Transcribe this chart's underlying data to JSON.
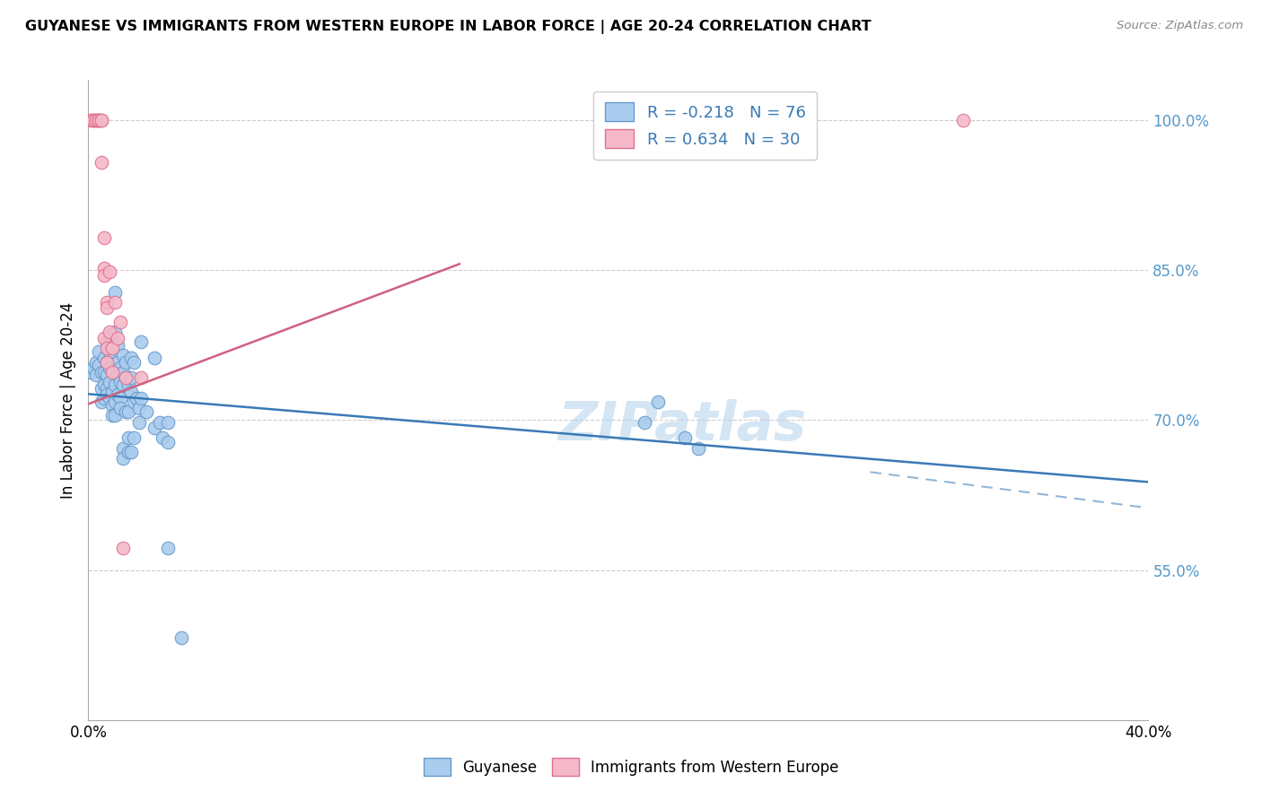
{
  "title": "GUYANESE VS IMMIGRANTS FROM WESTERN EUROPE IN LABOR FORCE | AGE 20-24 CORRELATION CHART",
  "source": "Source: ZipAtlas.com",
  "ylabel": "In Labor Force | Age 20-24",
  "xlim": [
    0.0,
    0.4
  ],
  "ylim": [
    0.4,
    1.04
  ],
  "yticks": [
    0.55,
    0.7,
    0.85,
    1.0
  ],
  "ytick_labels": [
    "55.0%",
    "70.0%",
    "85.0%",
    "100.0%"
  ],
  "xticks": [
    0.0,
    0.05,
    0.1,
    0.15,
    0.2,
    0.25,
    0.3,
    0.35,
    0.4
  ],
  "xtick_labels": [
    "0.0%",
    "",
    "",
    "",
    "",
    "",
    "",
    "",
    "40.0%"
  ],
  "legend_labels": [
    "Guyanese",
    "Immigrants from Western Europe"
  ],
  "blue_R": "-0.218",
  "blue_N": 76,
  "pink_R": "0.634",
  "pink_N": 30,
  "blue_fill_color": "#aaccee",
  "pink_fill_color": "#f5b8c8",
  "blue_edge_color": "#6699cc",
  "pink_edge_color": "#e07090",
  "blue_line_color": "#3a7ab5",
  "pink_line_color": "#d06080",
  "watermark": "ZIPatlas",
  "blue_trend": [
    0.0,
    0.4,
    0.726,
    0.638
  ],
  "pink_trend_solid": [
    0.0,
    0.14,
    0.716,
    0.856
  ],
  "blue_dash_segment": [
    0.295,
    0.4,
    0.648,
    0.612
  ],
  "blue_scatter": [
    [
      0.001,
      0.748
    ],
    [
      0.002,
      0.752
    ],
    [
      0.003,
      0.758
    ],
    [
      0.003,
      0.745
    ],
    [
      0.004,
      0.768
    ],
    [
      0.004,
      0.755
    ],
    [
      0.005,
      0.748
    ],
    [
      0.005,
      0.732
    ],
    [
      0.005,
      0.718
    ],
    [
      0.006,
      0.762
    ],
    [
      0.006,
      0.748
    ],
    [
      0.006,
      0.735
    ],
    [
      0.006,
      0.722
    ],
    [
      0.007,
      0.778
    ],
    [
      0.007,
      0.758
    ],
    [
      0.007,
      0.745
    ],
    [
      0.007,
      0.732
    ],
    [
      0.007,
      0.725
    ],
    [
      0.008,
      0.785
    ],
    [
      0.008,
      0.768
    ],
    [
      0.008,
      0.752
    ],
    [
      0.008,
      0.738
    ],
    [
      0.008,
      0.722
    ],
    [
      0.009,
      0.728
    ],
    [
      0.009,
      0.715
    ],
    [
      0.009,
      0.705
    ],
    [
      0.01,
      0.828
    ],
    [
      0.01,
      0.788
    ],
    [
      0.01,
      0.735
    ],
    [
      0.01,
      0.718
    ],
    [
      0.01,
      0.705
    ],
    [
      0.011,
      0.775
    ],
    [
      0.011,
      0.758
    ],
    [
      0.011,
      0.745
    ],
    [
      0.011,
      0.725
    ],
    [
      0.012,
      0.752
    ],
    [
      0.012,
      0.738
    ],
    [
      0.012,
      0.722
    ],
    [
      0.012,
      0.712
    ],
    [
      0.013,
      0.765
    ],
    [
      0.013,
      0.748
    ],
    [
      0.013,
      0.735
    ],
    [
      0.013,
      0.672
    ],
    [
      0.013,
      0.662
    ],
    [
      0.014,
      0.758
    ],
    [
      0.014,
      0.742
    ],
    [
      0.014,
      0.708
    ],
    [
      0.015,
      0.735
    ],
    [
      0.015,
      0.708
    ],
    [
      0.015,
      0.682
    ],
    [
      0.015,
      0.668
    ],
    [
      0.016,
      0.762
    ],
    [
      0.016,
      0.742
    ],
    [
      0.016,
      0.728
    ],
    [
      0.016,
      0.668
    ],
    [
      0.017,
      0.758
    ],
    [
      0.017,
      0.718
    ],
    [
      0.017,
      0.682
    ],
    [
      0.018,
      0.722
    ],
    [
      0.019,
      0.712
    ],
    [
      0.019,
      0.698
    ],
    [
      0.02,
      0.778
    ],
    [
      0.02,
      0.722
    ],
    [
      0.022,
      0.708
    ],
    [
      0.025,
      0.762
    ],
    [
      0.025,
      0.692
    ],
    [
      0.027,
      0.698
    ],
    [
      0.028,
      0.682
    ],
    [
      0.03,
      0.698
    ],
    [
      0.03,
      0.678
    ],
    [
      0.03,
      0.572
    ],
    [
      0.035,
      0.482
    ],
    [
      0.21,
      0.698
    ],
    [
      0.215,
      0.718
    ],
    [
      0.225,
      0.682
    ],
    [
      0.23,
      0.672
    ]
  ],
  "pink_scatter": [
    [
      0.001,
      1.0
    ],
    [
      0.002,
      1.0
    ],
    [
      0.002,
      1.0
    ],
    [
      0.003,
      1.0
    ],
    [
      0.003,
      1.0
    ],
    [
      0.004,
      1.0
    ],
    [
      0.004,
      1.0
    ],
    [
      0.004,
      1.0
    ],
    [
      0.005,
      1.0
    ],
    [
      0.005,
      1.0
    ],
    [
      0.005,
      0.958
    ],
    [
      0.006,
      0.882
    ],
    [
      0.006,
      0.852
    ],
    [
      0.006,
      0.845
    ],
    [
      0.006,
      0.782
    ],
    [
      0.007,
      0.818
    ],
    [
      0.007,
      0.812
    ],
    [
      0.007,
      0.772
    ],
    [
      0.007,
      0.758
    ],
    [
      0.008,
      0.848
    ],
    [
      0.008,
      0.788
    ],
    [
      0.009,
      0.772
    ],
    [
      0.009,
      0.748
    ],
    [
      0.01,
      0.818
    ],
    [
      0.011,
      0.782
    ],
    [
      0.012,
      0.798
    ],
    [
      0.013,
      0.572
    ],
    [
      0.014,
      0.742
    ],
    [
      0.02,
      0.742
    ],
    [
      0.33,
      1.0
    ]
  ]
}
